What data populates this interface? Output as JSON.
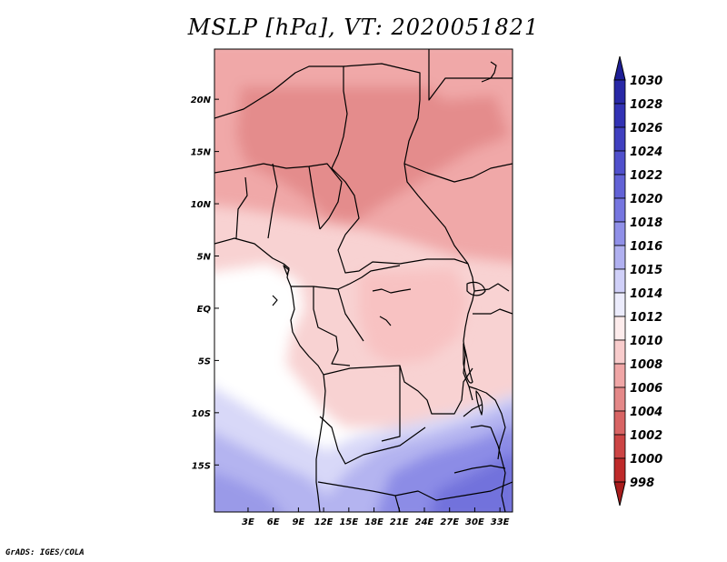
{
  "title": "MSLP [hPa], VT: 2020051821",
  "credit": "GrADS: IGES/COLA",
  "map": {
    "lon_range": [
      -1,
      34.5
    ],
    "lat_range": [
      -19.5,
      24.8
    ],
    "x_ticks": [
      {
        "value": 3,
        "label": "3E"
      },
      {
        "value": 6,
        "label": "6E"
      },
      {
        "value": 9,
        "label": "9E"
      },
      {
        "value": 12,
        "label": "12E"
      },
      {
        "value": 15,
        "label": "15E"
      },
      {
        "value": 18,
        "label": "18E"
      },
      {
        "value": 21,
        "label": "21E"
      },
      {
        "value": 24,
        "label": "24E"
      },
      {
        "value": 27,
        "label": "27E"
      },
      {
        "value": 30,
        "label": "30E"
      },
      {
        "value": 33,
        "label": "33E"
      }
    ],
    "y_ticks": [
      {
        "value": 20,
        "label": "20N"
      },
      {
        "value": 15,
        "label": "15N"
      },
      {
        "value": 10,
        "label": "10N"
      },
      {
        "value": 5,
        "label": "5N"
      },
      {
        "value": 0,
        "label": "EQ"
      },
      {
        "value": -5,
        "label": "5S"
      },
      {
        "value": -10,
        "label": "10S"
      },
      {
        "value": -15,
        "label": "15S"
      }
    ]
  },
  "colorbar": {
    "levels": [
      "1030",
      "1028",
      "1026",
      "1024",
      "1022",
      "1020",
      "1018",
      "1016",
      "1015",
      "1014",
      "1012",
      "1010",
      "1008",
      "1006",
      "1004",
      "1002",
      "1000",
      "998"
    ],
    "colors": [
      "#1e1e96",
      "#2828a6",
      "#3232b4",
      "#4040c0",
      "#5050cc",
      "#6262d6",
      "#7676e0",
      "#9090e8",
      "#b0b0f0",
      "#d0d0f8",
      "#ececfc",
      "#fdecec",
      "#f8cccc",
      "#f0a6a6",
      "#e48888",
      "#d86464",
      "#cc4444",
      "#be2a2a",
      "#a81c1c"
    ]
  }
}
